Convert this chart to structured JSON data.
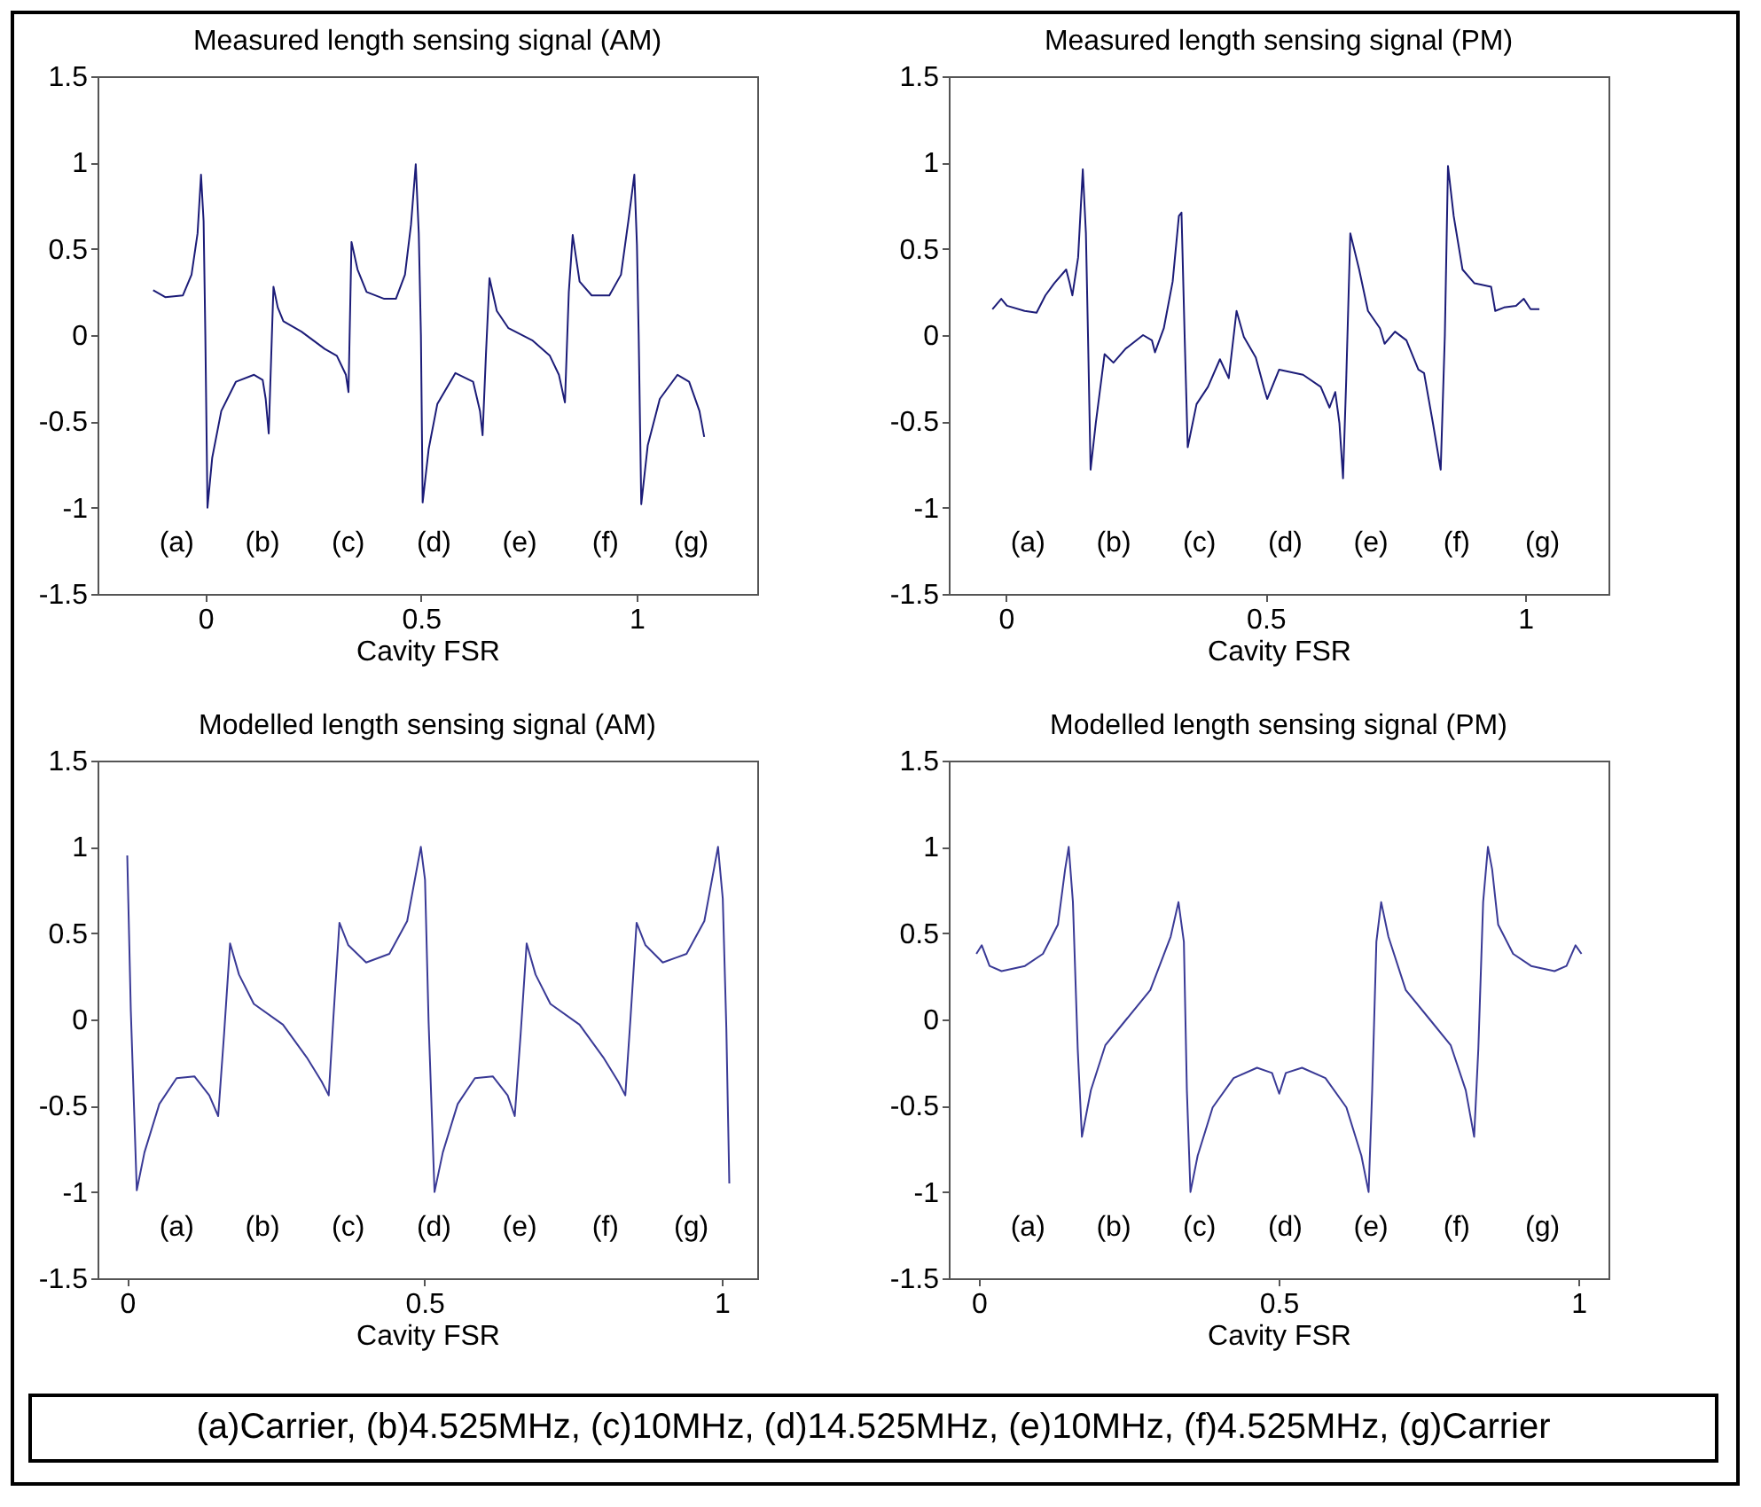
{
  "chart_data": [
    {
      "type": "line",
      "title": "Measured length sensing signal (AM)",
      "xlabel": "Cavity FSR",
      "xlim": [
        -0.25,
        1.28
      ],
      "ylim": [
        -1.5,
        1.5
      ],
      "xticks": [
        0,
        0.5,
        1
      ],
      "yticks": [
        -1.5,
        -1,
        -0.5,
        0,
        0.5,
        1,
        1.5
      ],
      "x": [
        -0.121,
        -0.093,
        -0.052,
        -0.032,
        -0.018,
        -0.01,
        -0.004,
        0.0,
        0.005,
        0.016,
        0.037,
        0.071,
        0.113,
        0.133,
        0.14,
        0.147,
        0.154,
        0.158,
        0.168,
        0.181,
        0.223,
        0.277,
        0.305,
        0.326,
        0.332,
        0.339,
        0.353,
        0.374,
        0.415,
        0.442,
        0.463,
        0.477,
        0.488,
        0.495,
        0.5,
        0.504,
        0.518,
        0.538,
        0.58,
        0.621,
        0.637,
        0.643,
        0.651,
        0.659,
        0.676,
        0.703,
        0.758,
        0.799,
        0.82,
        0.834,
        0.843,
        0.852,
        0.868,
        0.896,
        0.937,
        0.964,
        0.981,
        0.995,
        1.001,
        1.005,
        1.011,
        1.026,
        1.054,
        1.095,
        1.122,
        1.146,
        1.157
      ],
      "series": [
        {
          "color": "#1c1c78",
          "values": [
            0.26,
            0.22,
            0.23,
            0.35,
            0.59,
            0.93,
            0.66,
            0.0,
            -1.0,
            -0.71,
            -0.44,
            -0.27,
            -0.23,
            -0.26,
            -0.37,
            -0.57,
            -0.03,
            0.28,
            0.16,
            0.08,
            0.02,
            -0.08,
            -0.12,
            -0.23,
            -0.33,
            0.54,
            0.38,
            0.25,
            0.21,
            0.21,
            0.35,
            0.64,
            0.99,
            0.59,
            0.0,
            -0.97,
            -0.66,
            -0.4,
            -0.22,
            -0.27,
            -0.44,
            -0.58,
            -0.1,
            0.33,
            0.14,
            0.04,
            -0.03,
            -0.12,
            -0.23,
            -0.39,
            0.25,
            0.58,
            0.31,
            0.23,
            0.23,
            0.35,
            0.66,
            0.93,
            0.52,
            0.0,
            -0.98,
            -0.64,
            -0.37,
            -0.23,
            -0.27,
            -0.44,
            -0.59
          ]
        }
      ],
      "annotations": [
        "(a)",
        "(b)",
        "(c)",
        "(d)",
        "(e)",
        "(f)",
        "(g)"
      ]
    },
    {
      "type": "line",
      "title": "Measured length sensing signal (PM)",
      "xlabel": "Cavity FSR",
      "xlim": [
        -0.11,
        1.16
      ],
      "ylim": [
        -1.5,
        1.5
      ],
      "xticks": [
        0,
        0.5,
        1
      ],
      "yticks": [
        -1.5,
        -1,
        -0.5,
        0,
        0.5,
        1,
        1.5
      ],
      "x": [
        -0.026,
        -0.009,
        0.002,
        0.036,
        0.059,
        0.076,
        0.093,
        0.116,
        0.122,
        0.128,
        0.139,
        0.148,
        0.154,
        0.158,
        0.163,
        0.173,
        0.19,
        0.207,
        0.23,
        0.264,
        0.281,
        0.287,
        0.304,
        0.321,
        0.333,
        0.338,
        0.344,
        0.35,
        0.367,
        0.389,
        0.412,
        0.429,
        0.444,
        0.458,
        0.481,
        0.498,
        0.503,
        0.526,
        0.572,
        0.606,
        0.623,
        0.634,
        0.642,
        0.649,
        0.655,
        0.663,
        0.68,
        0.697,
        0.72,
        0.729,
        0.749,
        0.771,
        0.794,
        0.805,
        0.822,
        0.837,
        0.845,
        0.851,
        0.862,
        0.879,
        0.902,
        0.934,
        0.942,
        0.959,
        0.982,
        0.997,
        1.01,
        1.027
      ],
      "series": [
        {
          "color": "#1c1c78",
          "values": [
            0.15,
            0.21,
            0.17,
            0.14,
            0.13,
            0.23,
            0.3,
            0.38,
            0.31,
            0.23,
            0.45,
            0.96,
            0.59,
            0.0,
            -0.78,
            -0.51,
            -0.11,
            -0.16,
            -0.08,
            0.0,
            -0.03,
            -0.1,
            0.04,
            0.31,
            0.69,
            0.71,
            0.0,
            -0.65,
            -0.4,
            -0.3,
            -0.14,
            -0.25,
            0.14,
            -0.01,
            -0.13,
            -0.32,
            -0.37,
            -0.2,
            -0.23,
            -0.3,
            -0.42,
            -0.33,
            -0.51,
            -0.83,
            -0.27,
            0.59,
            0.38,
            0.14,
            0.04,
            -0.05,
            0.02,
            -0.03,
            -0.2,
            -0.22,
            -0.51,
            -0.78,
            0.0,
            0.98,
            0.69,
            0.38,
            0.3,
            0.28,
            0.14,
            0.16,
            0.17,
            0.21,
            0.15,
            0.15
          ]
        }
      ],
      "annotations": [
        "(a)",
        "(b)",
        "(c)",
        "(d)",
        "(e)",
        "(f)",
        "(g)"
      ]
    },
    {
      "type": "line",
      "title": "Modelled length sensing signal (AM)",
      "xlabel": "Cavity FSR",
      "xlim": [
        -0.05,
        1.06
      ],
      "ylim": [
        -1.5,
        1.5
      ],
      "xticks": [
        0,
        0.5,
        1
      ],
      "yticks": [
        -1.5,
        -1,
        -0.5,
        0,
        0.5,
        1,
        1.5
      ],
      "x": [
        0.0,
        0.006,
        0.016,
        0.029,
        0.054,
        0.083,
        0.113,
        0.138,
        0.153,
        0.163,
        0.173,
        0.188,
        0.213,
        0.262,
        0.302,
        0.327,
        0.339,
        0.347,
        0.357,
        0.372,
        0.402,
        0.441,
        0.471,
        0.494,
        0.501,
        0.507,
        0.517,
        0.531,
        0.556,
        0.585,
        0.615,
        0.64,
        0.652,
        0.662,
        0.672,
        0.687,
        0.712,
        0.761,
        0.801,
        0.826,
        0.838,
        0.847,
        0.857,
        0.872,
        0.901,
        0.941,
        0.971,
        0.994,
        1.002,
        1.008,
        1.013
      ],
      "series": [
        {
          "color": "#3a3a96",
          "values": [
            0.95,
            0.05,
            -0.99,
            -0.77,
            -0.49,
            -0.34,
            -0.33,
            -0.44,
            -0.56,
            -0.08,
            0.44,
            0.26,
            0.09,
            -0.03,
            -0.22,
            -0.36,
            -0.44,
            0.02,
            0.56,
            0.43,
            0.33,
            0.38,
            0.57,
            1.0,
            0.81,
            -0.01,
            -1.0,
            -0.77,
            -0.49,
            -0.34,
            -0.33,
            -0.44,
            -0.56,
            -0.08,
            0.44,
            0.26,
            0.09,
            -0.03,
            -0.22,
            -0.36,
            -0.44,
            0.02,
            0.56,
            0.43,
            0.33,
            0.38,
            0.57,
            1.0,
            0.7,
            -0.05,
            -0.95
          ]
        }
      ],
      "annotations": [
        "(a)",
        "(b)",
        "(c)",
        "(d)",
        "(e)",
        "(f)",
        "(g)"
      ]
    },
    {
      "type": "line",
      "title": "Modelled length sensing signal (PM)",
      "xlabel": "Cavity FSR",
      "xlim": [
        -0.05,
        1.05
      ],
      "ylim": [
        -1.5,
        1.5
      ],
      "xticks": [
        0,
        0.5,
        1
      ],
      "yticks": [
        -1.5,
        -1,
        -0.5,
        0,
        0.5,
        1,
        1.5
      ],
      "x": [
        -0.004,
        0.005,
        0.018,
        0.038,
        0.077,
        0.107,
        0.132,
        0.144,
        0.15,
        0.157,
        0.165,
        0.172,
        0.187,
        0.211,
        0.246,
        0.286,
        0.32,
        0.333,
        0.342,
        0.347,
        0.353,
        0.365,
        0.39,
        0.425,
        0.464,
        0.489,
        0.501,
        0.512,
        0.539,
        0.578,
        0.613,
        0.638,
        0.65,
        0.656,
        0.663,
        0.671,
        0.683,
        0.712,
        0.752,
        0.787,
        0.812,
        0.826,
        0.833,
        0.841,
        0.849,
        0.856,
        0.866,
        0.891,
        0.921,
        0.96,
        0.98,
        0.995,
        1.005
      ],
      "series": [
        {
          "color": "#3a3a96",
          "values": [
            0.38,
            0.43,
            0.31,
            0.28,
            0.31,
            0.38,
            0.55,
            0.87,
            1.0,
            0.68,
            -0.17,
            -0.68,
            -0.41,
            -0.15,
            0.0,
            0.17,
            0.48,
            0.68,
            0.45,
            -0.41,
            -1.0,
            -0.79,
            -0.51,
            -0.34,
            -0.28,
            -0.31,
            -0.43,
            -0.31,
            -0.28,
            -0.34,
            -0.51,
            -0.79,
            -1.0,
            -0.41,
            0.45,
            0.68,
            0.48,
            0.17,
            0.0,
            -0.15,
            -0.41,
            -0.68,
            -0.17,
            0.68,
            1.0,
            0.87,
            0.55,
            0.38,
            0.31,
            0.28,
            0.31,
            0.43,
            0.38
          ]
        }
      ],
      "annotations": [
        "(a)",
        "(b)",
        "(c)",
        "(d)",
        "(e)",
        "(f)",
        "(g)"
      ]
    },
    {
      "type": "other",
      "annotations": [
        "(a)Carrier, (b)4.525MHz, (c)10MHz, (d)14.525MHz, (e)10MHz, (f)4.525MHz, (g)Carrier"
      ]
    }
  ]
}
